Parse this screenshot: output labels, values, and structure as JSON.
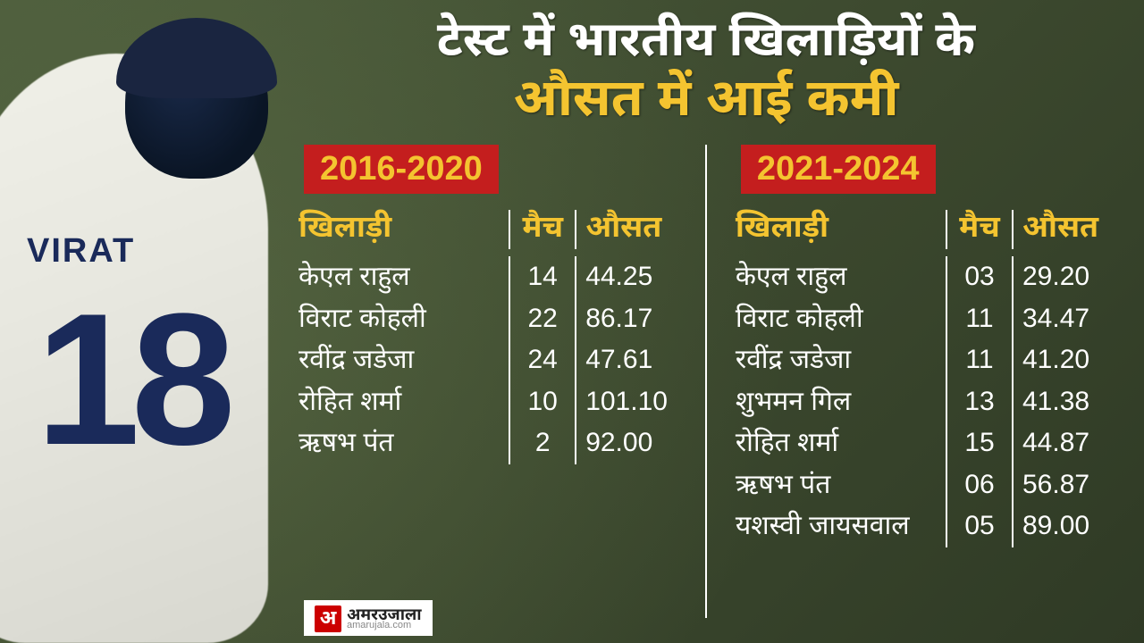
{
  "colors": {
    "background": "#3d4a2f",
    "title_white": "#ffffff",
    "title_accent": "#f4c430",
    "header_text": "#f4c430",
    "row_text": "#ffffff",
    "badge_bg": "#c41e1e",
    "badge_text": "#f4c430",
    "divider": "#ffffff",
    "player_text": "#1a2a5a"
  },
  "player": {
    "name": "VIRAT",
    "number": "18"
  },
  "title": {
    "line1": "टेस्ट में भारतीय खिलाड़ियों के",
    "line2": "औसत में आई कमी"
  },
  "tables": {
    "headers": {
      "player": "खिलाड़ी",
      "match": "मैच",
      "avg": "औसत"
    },
    "left": {
      "period": "2016-2020",
      "rows": [
        {
          "player": "केएल राहुल",
          "match": "14",
          "avg": "44.25"
        },
        {
          "player": "विराट कोहली",
          "match": "22",
          "avg": "86.17"
        },
        {
          "player": "रवींद्र जडेजा",
          "match": "24",
          "avg": "47.61"
        },
        {
          "player": "रोहित शर्मा",
          "match": "10",
          "avg": "101.10"
        },
        {
          "player": "ऋषभ पंत",
          "match": "2",
          "avg": "92.00"
        }
      ]
    },
    "right": {
      "period": "2021-2024",
      "rows": [
        {
          "player": "केएल राहुल",
          "match": "03",
          "avg": "29.20"
        },
        {
          "player": "विराट कोहली",
          "match": "11",
          "avg": "34.47"
        },
        {
          "player": "रवींद्र जडेजा",
          "match": "11",
          "avg": "41.20"
        },
        {
          "player": "शुभमन गिल",
          "match": "13",
          "avg": "41.38"
        },
        {
          "player": "रोहित शर्मा",
          "match": "15",
          "avg": "44.87"
        },
        {
          "player": "ऋषभ पंत",
          "match": "06",
          "avg": "56.87"
        },
        {
          "player": "यशस्वी जायसवाल",
          "match": "05",
          "avg": "89.00"
        }
      ]
    }
  },
  "source": {
    "logo": "अ",
    "name": "अमरउजाला",
    "url": "amarujala.com"
  },
  "typography": {
    "title_fontsize": 56,
    "badge_fontsize": 38,
    "header_fontsize": 34,
    "row_fontsize": 30
  }
}
